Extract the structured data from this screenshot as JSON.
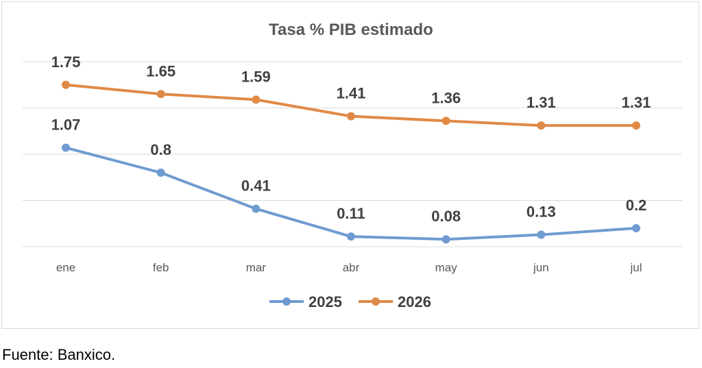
{
  "chart_data": {
    "type": "line",
    "title": "Tasa % PIB estimado",
    "categories": [
      "ene",
      "feb",
      "mar",
      "abr",
      "may",
      "jun",
      "jul"
    ],
    "series": [
      {
        "name": "2025",
        "values": [
          1.07,
          0.8,
          0.41,
          0.11,
          0.08,
          0.13,
          0.2
        ],
        "labels": [
          "1.07",
          "0.8",
          "0.41",
          "0.11",
          "0.08",
          "0.13",
          "0.2"
        ],
        "color": "#6f9bd1"
      },
      {
        "name": "2026",
        "values": [
          1.75,
          1.65,
          1.59,
          1.41,
          1.36,
          1.31,
          1.31
        ],
        "labels": [
          "1.75",
          "1.65",
          "1.59",
          "1.41",
          "1.36",
          "1.31",
          "1.31"
        ],
        "color": "#e08a47"
      }
    ],
    "ylim": [
      0,
      2
    ],
    "grid": true,
    "gridline_color": "#d9d9d9",
    "legend": "bottom",
    "xlabel": "",
    "ylabel": ""
  },
  "source": "Fuente: Banxico."
}
